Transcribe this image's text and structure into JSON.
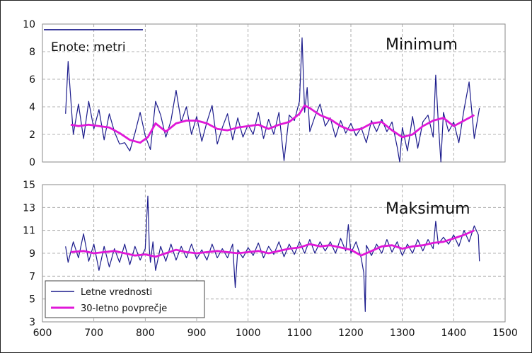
{
  "chart_data": [
    {
      "type": "line",
      "panel": "top",
      "title": "Minimum",
      "annotation": "Enote: metri",
      "xlim": [
        600,
        1500
      ],
      "ylim": [
        0,
        10
      ],
      "yticks": [
        0,
        2,
        4,
        6,
        8,
        10
      ],
      "grid": true,
      "series": [
        {
          "name": "Letne vrednosti",
          "color": "#1c1c8c",
          "x": [
            645,
            650,
            660,
            670,
            680,
            690,
            700,
            710,
            720,
            730,
            740,
            750,
            760,
            770,
            780,
            790,
            800,
            810,
            820,
            830,
            840,
            850,
            860,
            870,
            880,
            890,
            900,
            910,
            920,
            930,
            940,
            950,
            960,
            970,
            980,
            990,
            1000,
            1010,
            1020,
            1030,
            1040,
            1050,
            1060,
            1070,
            1080,
            1090,
            1100,
            1105,
            1110,
            1115,
            1120,
            1130,
            1140,
            1150,
            1160,
            1170,
            1180,
            1190,
            1200,
            1210,
            1220,
            1230,
            1240,
            1250,
            1260,
            1270,
            1280,
            1290,
            1295,
            1300,
            1310,
            1320,
            1330,
            1340,
            1350,
            1360,
            1365,
            1370,
            1375,
            1380,
            1390,
            1400,
            1410,
            1420,
            1430,
            1440,
            1450
          ],
          "y": [
            3.5,
            7.3,
            2.0,
            4.2,
            1.7,
            4.4,
            2.4,
            3.8,
            1.6,
            3.5,
            2.2,
            1.3,
            1.4,
            0.8,
            2.1,
            3.6,
            1.9,
            0.9,
            4.4,
            3.4,
            1.8,
            3.0,
            5.2,
            2.9,
            4.0,
            2.0,
            3.3,
            1.5,
            2.9,
            4.1,
            1.3,
            2.5,
            3.5,
            1.6,
            3.2,
            1.8,
            2.7,
            2.0,
            3.6,
            1.7,
            3.1,
            2.0,
            3.6,
            0.1,
            3.4,
            3.0,
            4.4,
            9.0,
            3.6,
            5.4,
            2.2,
            3.3,
            4.2,
            2.6,
            3.2,
            1.8,
            3.0,
            2.1,
            2.8,
            1.9,
            2.5,
            1.4,
            3.0,
            2.2,
            3.1,
            2.2,
            2.9,
            1.1,
            0.0,
            2.5,
            0.8,
            3.3,
            1.0,
            2.9,
            3.4,
            1.8,
            6.3,
            2.9,
            0.0,
            3.6,
            2.2,
            2.9,
            1.4,
            3.8,
            5.8,
            1.7,
            3.9
          ]
        },
        {
          "name": "30-letno povprečje",
          "color": "#e018d8",
          "x": [
            655,
            670,
            690,
            710,
            730,
            750,
            770,
            790,
            805,
            820,
            840,
            860,
            880,
            900,
            920,
            940,
            960,
            980,
            1000,
            1020,
            1040,
            1060,
            1080,
            1100,
            1110,
            1120,
            1140,
            1160,
            1180,
            1200,
            1220,
            1240,
            1260,
            1280,
            1300,
            1320,
            1340,
            1360,
            1380,
            1400,
            1420,
            1440
          ],
          "y": [
            2.7,
            2.6,
            2.7,
            2.6,
            2.5,
            2.1,
            1.6,
            1.4,
            1.8,
            2.8,
            2.2,
            2.8,
            3.0,
            3.0,
            2.8,
            2.4,
            2.3,
            2.5,
            2.6,
            2.7,
            2.4,
            2.7,
            2.9,
            3.5,
            4.1,
            3.9,
            3.4,
            3.1,
            2.6,
            2.3,
            2.4,
            2.8,
            2.9,
            2.3,
            1.8,
            2.0,
            2.6,
            3.0,
            3.2,
            2.6,
            3.0,
            3.4
          ]
        }
      ]
    },
    {
      "type": "line",
      "panel": "bottom",
      "title": "Maksimum",
      "xlim": [
        600,
        1500
      ],
      "ylim": [
        3,
        15
      ],
      "yticks": [
        3,
        5,
        7,
        9,
        11,
        13,
        15
      ],
      "xticks": [
        600,
        700,
        800,
        900,
        1000,
        1100,
        1200,
        1300,
        1400,
        1500
      ],
      "grid": true,
      "legend_position": "bottom-left",
      "series": [
        {
          "name": "Letne vrednosti",
          "color": "#1c1c8c",
          "x": [
            645,
            650,
            660,
            670,
            680,
            690,
            700,
            710,
            720,
            730,
            740,
            750,
            760,
            770,
            780,
            790,
            800,
            805,
            808,
            810,
            815,
            820,
            830,
            840,
            850,
            860,
            870,
            880,
            890,
            900,
            910,
            920,
            930,
            940,
            950,
            960,
            970,
            975,
            980,
            990,
            1000,
            1010,
            1020,
            1030,
            1040,
            1050,
            1060,
            1070,
            1080,
            1090,
            1100,
            1110,
            1120,
            1130,
            1140,
            1150,
            1160,
            1170,
            1180,
            1190,
            1195,
            1200,
            1210,
            1220,
            1225,
            1228,
            1230,
            1240,
            1250,
            1260,
            1270,
            1280,
            1290,
            1300,
            1310,
            1320,
            1330,
            1340,
            1350,
            1360,
            1365,
            1370,
            1380,
            1390,
            1400,
            1410,
            1420,
            1430,
            1440,
            1448,
            1450
          ],
          "y": [
            9.6,
            8.2,
            10.0,
            8.6,
            10.7,
            8.3,
            9.8,
            7.5,
            9.6,
            7.8,
            9.4,
            8.2,
            9.8,
            8.0,
            9.6,
            8.4,
            9.4,
            14.0,
            9.4,
            8.2,
            10.0,
            7.5,
            9.6,
            8.3,
            9.8,
            8.4,
            9.6,
            8.6,
            9.8,
            8.5,
            9.3,
            8.4,
            9.8,
            8.6,
            9.4,
            8.6,
            9.8,
            6.0,
            9.3,
            8.6,
            9.5,
            8.8,
            9.9,
            8.6,
            9.6,
            8.9,
            10.0,
            8.7,
            9.8,
            8.9,
            10.0,
            9.0,
            10.2,
            9.0,
            10.0,
            9.2,
            10.0,
            9.0,
            10.3,
            9.2,
            11.5,
            9.0,
            10.0,
            8.6,
            7.3,
            3.9,
            9.7,
            8.8,
            9.8,
            9.0,
            10.2,
            9.1,
            10.0,
            8.8,
            9.8,
            9.0,
            10.2,
            9.2,
            10.2,
            9.4,
            11.8,
            9.8,
            10.4,
            9.8,
            10.6,
            9.6,
            11.0,
            10.0,
            11.4,
            10.6,
            8.3
          ]
        },
        {
          "name": "30-letno povprečje",
          "color": "#e018d8",
          "x": [
            655,
            680,
            700,
            720,
            740,
            760,
            780,
            800,
            820,
            840,
            860,
            880,
            900,
            920,
            940,
            960,
            980,
            1000,
            1020,
            1040,
            1060,
            1080,
            1100,
            1120,
            1140,
            1160,
            1180,
            1200,
            1220,
            1240,
            1260,
            1280,
            1300,
            1320,
            1340,
            1360,
            1380,
            1400,
            1420,
            1440
          ],
          "y": [
            9.1,
            9.2,
            9.0,
            9.1,
            9.2,
            9.0,
            8.8,
            8.9,
            8.7,
            9.0,
            9.3,
            9.1,
            9.0,
            9.1,
            9.2,
            9.1,
            9.0,
            9.1,
            9.2,
            9.0,
            9.2,
            9.4,
            9.5,
            9.8,
            9.6,
            9.7,
            9.5,
            9.3,
            8.8,
            9.2,
            9.6,
            9.7,
            9.4,
            9.6,
            9.7,
            9.9,
            10.0,
            10.3,
            10.6,
            11.0
          ]
        }
      ]
    }
  ]
}
